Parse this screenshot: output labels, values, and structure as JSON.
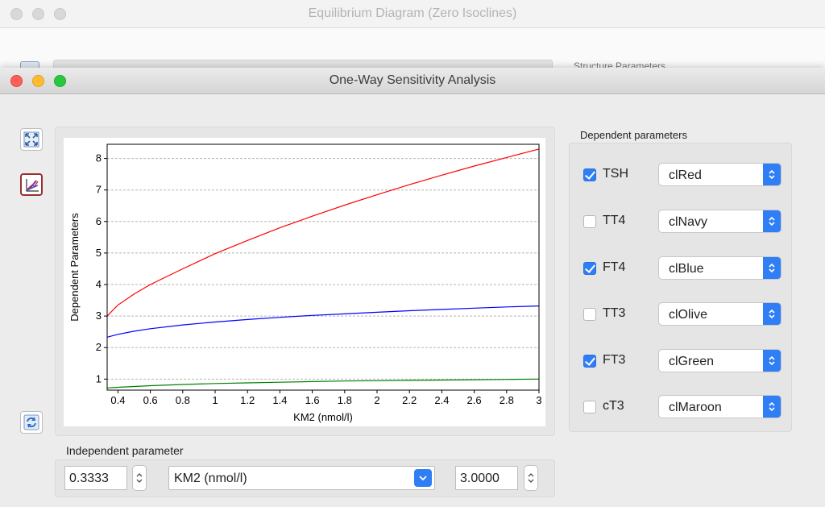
{
  "background_window": {
    "title": "Equilibrium Diagram (Zero Isoclines)",
    "partial_label": "Structure Parameters"
  },
  "window": {
    "title": "One-Way Sensitivity Analysis"
  },
  "toolbar": {
    "fit_icon": "expand-arrows-icon",
    "chart_icon": "line-chart-icon",
    "refresh_icon": "refresh-icon"
  },
  "dependent": {
    "label": "Dependent parameters",
    "items": [
      {
        "label": "TSH",
        "checked": true,
        "color_name": "clRed",
        "color": "#ff0000"
      },
      {
        "label": "TT4",
        "checked": false,
        "color_name": "clNavy",
        "color": "#000080"
      },
      {
        "label": "FT4",
        "checked": true,
        "color_name": "clBlue",
        "color": "#0000ff"
      },
      {
        "label": "TT3",
        "checked": false,
        "color_name": "clOlive",
        "color": "#808000"
      },
      {
        "label": "FT3",
        "checked": true,
        "color_name": "clGreen",
        "color": "#008000"
      },
      {
        "label": "cT3",
        "checked": false,
        "color_name": "clMaroon",
        "color": "#800000"
      }
    ]
  },
  "independent": {
    "label": "Independent parameter",
    "min_value": "0.3333",
    "parameter": "KM2 (nmol/l)",
    "max_value": "3.0000"
  },
  "chart_data": {
    "type": "line",
    "xlabel": "KM2 (nmol/l)",
    "ylabel": "Dependent Parameters",
    "xlim": [
      0.3333,
      3.0
    ],
    "ylim": [
      0.65,
      8.45
    ],
    "xticks": [
      "0.4",
      "0.6",
      "0.8",
      "1",
      "1.2",
      "1.4",
      "1.6",
      "1.8",
      "2",
      "2.2",
      "2.4",
      "2.6",
      "2.8",
      "3"
    ],
    "yticks": [
      "1",
      "2",
      "3",
      "4",
      "5",
      "6",
      "7",
      "8"
    ],
    "horizontal_grid": true,
    "series": [
      {
        "name": "TSH",
        "color": "#ff0000",
        "x": [
          0.3333,
          0.4,
          0.5,
          0.6,
          0.8,
          1.0,
          1.2,
          1.4,
          1.6,
          1.8,
          2.0,
          2.2,
          2.4,
          2.6,
          2.8,
          3.0
        ],
        "y": [
          3.0,
          3.35,
          3.7,
          4.0,
          4.5,
          4.98,
          5.4,
          5.8,
          6.17,
          6.52,
          6.85,
          7.17,
          7.47,
          7.76,
          8.03,
          8.3
        ]
      },
      {
        "name": "FT4",
        "color": "#0000ff",
        "x": [
          0.3333,
          0.4,
          0.5,
          0.6,
          0.8,
          1.0,
          1.2,
          1.4,
          1.6,
          1.8,
          2.0,
          2.2,
          2.4,
          2.6,
          2.8,
          3.0
        ],
        "y": [
          2.33,
          2.42,
          2.52,
          2.6,
          2.72,
          2.81,
          2.89,
          2.96,
          3.02,
          3.07,
          3.12,
          3.17,
          3.21,
          3.25,
          3.29,
          3.32
        ]
      },
      {
        "name": "FT3",
        "color": "#008000",
        "x": [
          0.3333,
          0.4,
          0.6,
          0.8,
          1.0,
          1.2,
          1.4,
          1.6,
          1.8,
          2.0,
          2.2,
          2.4,
          2.6,
          2.8,
          3.0
        ],
        "y": [
          0.72,
          0.74,
          0.79,
          0.83,
          0.86,
          0.88,
          0.9,
          0.92,
          0.94,
          0.95,
          0.96,
          0.97,
          0.98,
          0.99,
          1.0
        ]
      }
    ]
  }
}
